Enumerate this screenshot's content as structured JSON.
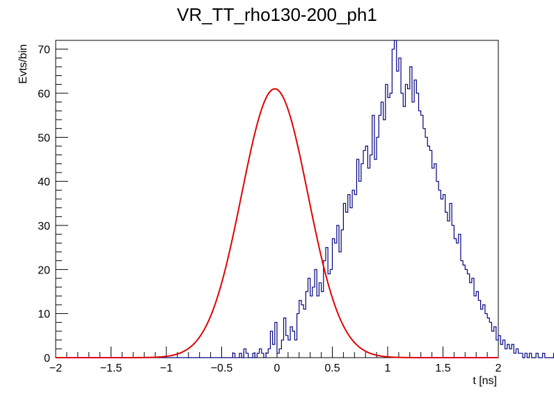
{
  "chart_data": {
    "type": "histogram",
    "title": "VR_TT_rho130-200_ph1",
    "xlabel": "t [ns]",
    "ylabel": "Evts/bin",
    "xlim": [
      -2,
      2
    ],
    "ylim": [
      0,
      72
    ],
    "x_ticks": [
      -2,
      -1.5,
      -1,
      -0.5,
      0,
      0.5,
      1,
      1.5,
      2
    ],
    "x_tick_labels": [
      "−2",
      "−1.5",
      "−1",
      "−0.5",
      "0",
      "0.5",
      "1",
      "1.5",
      "2"
    ],
    "y_ticks": [
      0,
      10,
      20,
      30,
      40,
      50,
      60,
      70
    ],
    "y_tick_labels": [
      "0",
      "10",
      "20",
      "30",
      "40",
      "50",
      "60",
      "70"
    ],
    "bin_width": 0.02,
    "series": [
      {
        "name": "histogram",
        "color": "#000080",
        "x_start": -2.0,
        "values": [
          0,
          0,
          0,
          0,
          0,
          0,
          0,
          0,
          0,
          0,
          0,
          0,
          0,
          0,
          0,
          0,
          0,
          0,
          0,
          0,
          0,
          0,
          0,
          0,
          0,
          0,
          0,
          0,
          0,
          0,
          0,
          0,
          0,
          0,
          0,
          0,
          0,
          0,
          0,
          0,
          0,
          0,
          0,
          0,
          0,
          0,
          0,
          0,
          0,
          0,
          0,
          0,
          0,
          0,
          0,
          0,
          0,
          0,
          0,
          0,
          0,
          0,
          0,
          0,
          0,
          0,
          0,
          0,
          0,
          0,
          0,
          0,
          0,
          0,
          0,
          0,
          0,
          0,
          0,
          0,
          1,
          0,
          0,
          1,
          0,
          2,
          1,
          0,
          0,
          1,
          0,
          1,
          2,
          1,
          0,
          1,
          2,
          6,
          3,
          8,
          1,
          2,
          4,
          9,
          5,
          4,
          7,
          6,
          4,
          10,
          13,
          12,
          11,
          15,
          18,
          14,
          16,
          20,
          14,
          17,
          15,
          22,
          25,
          19,
          20,
          27,
          26,
          30,
          24,
          29,
          35,
          33,
          37,
          34,
          38,
          37,
          45,
          40,
          44,
          47,
          48,
          43,
          46,
          55,
          45,
          50,
          55,
          58,
          54,
          62,
          59,
          60,
          70,
          72,
          65,
          68,
          60,
          57,
          62,
          61,
          66,
          58,
          63,
          60,
          56,
          55,
          52,
          50,
          48,
          47,
          43,
          44,
          40,
          38,
          36,
          37,
          33,
          31,
          35,
          30,
          27,
          26,
          28,
          22,
          21,
          20,
          19,
          17,
          18,
          14,
          15,
          13,
          11,
          12,
          10,
          9,
          8,
          6,
          7,
          4,
          5,
          3,
          4,
          2,
          3,
          2,
          3,
          1,
          2,
          1,
          1,
          0,
          1,
          0,
          1,
          0,
          0,
          1,
          0,
          0,
          1,
          0,
          0,
          0,
          0,
          1,
          0,
          0,
          0,
          0,
          0,
          0,
          0,
          0,
          0,
          0,
          0,
          0,
          0,
          0,
          0,
          0,
          0,
          0,
          0,
          0,
          0,
          0,
          0,
          0,
          0,
          0,
          0,
          0,
          0,
          0,
          0,
          0,
          0,
          0,
          0,
          0,
          0,
          0,
          0,
          0,
          0,
          0,
          0,
          0,
          0,
          0,
          0,
          0,
          0,
          0,
          0,
          0,
          0,
          0
        ]
      },
      {
        "name": "gaussian fit",
        "color": "#e00000",
        "amplitude": 61.0,
        "mean": -0.02,
        "sigma": 0.3
      }
    ]
  }
}
